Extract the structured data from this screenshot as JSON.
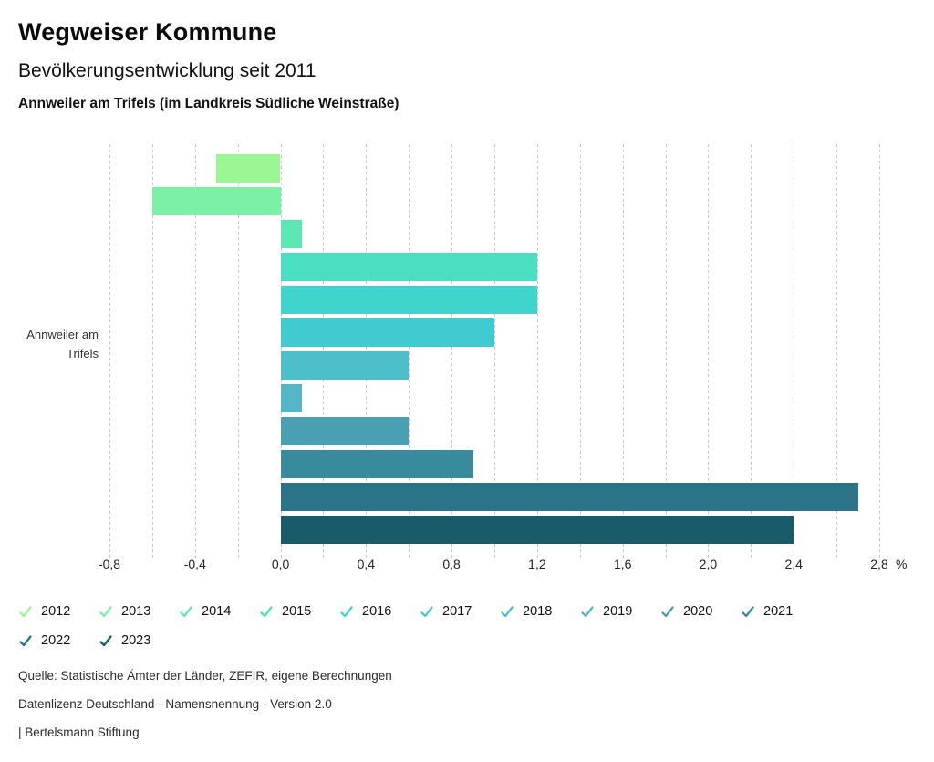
{
  "header": {
    "title": "Wegweiser Kommune",
    "subtitle": "Bevölkerungsentwicklung seit 2011",
    "region": "Annweiler am Trifels (im Landkreis Südliche Weinstraße)"
  },
  "chart_data": {
    "type": "bar",
    "orientation": "horizontal",
    "title": "Bevölkerungsentwicklung seit 2011",
    "unit": "%",
    "category_label_lines": [
      "Annweiler am",
      "Trifels"
    ],
    "series": [
      {
        "name": "2012",
        "value": -0.3,
        "color": "#9af794"
      },
      {
        "name": "2013",
        "value": -0.6,
        "color": "#7cf0a5"
      },
      {
        "name": "2014",
        "value": 0.1,
        "color": "#5ce8b5"
      },
      {
        "name": "2015",
        "value": 1.2,
        "color": "#49dfc0"
      },
      {
        "name": "2016",
        "value": 1.2,
        "color": "#3fd5cc"
      },
      {
        "name": "2017",
        "value": 1.0,
        "color": "#41cbd0"
      },
      {
        "name": "2018",
        "value": 0.6,
        "color": "#4dbfca"
      },
      {
        "name": "2019",
        "value": 0.1,
        "color": "#57b5c8"
      },
      {
        "name": "2020",
        "value": 0.6,
        "color": "#4a9fb3"
      },
      {
        "name": "2021",
        "value": 0.9,
        "color": "#3a8a9e"
      },
      {
        "name": "2022",
        "value": 2.7,
        "color": "#2b7487"
      },
      {
        "name": "2023",
        "value": 2.4,
        "color": "#1a5b6a"
      }
    ],
    "xlim": [
      -0.8,
      2.8
    ],
    "grid_step": 0.2,
    "grid": true,
    "gridline_color": "#c7c7c7",
    "x_major_values": [
      -0.8,
      -0.4,
      0.0,
      0.4,
      0.8,
      1.2,
      1.6,
      2.0,
      2.4,
      2.8
    ],
    "x_major_ticks": [
      "-0,8",
      "-0,4",
      "0,0",
      "0,4",
      "0,8",
      "1,2",
      "1,6",
      "2,0",
      "2,4",
      "2,8"
    ],
    "legend_position": "bottom"
  },
  "legend": {
    "items": [
      {
        "label": "2012",
        "color": "#9af794"
      },
      {
        "label": "2013",
        "color": "#7cf0a5"
      },
      {
        "label": "2014",
        "color": "#5ce8b5"
      },
      {
        "label": "2015",
        "color": "#49dfc0"
      },
      {
        "label": "2016",
        "color": "#3fd5cc"
      },
      {
        "label": "2017",
        "color": "#41cbd0"
      },
      {
        "label": "2018",
        "color": "#4dbfca"
      },
      {
        "label": "2019",
        "color": "#57b5c8"
      },
      {
        "label": "2020",
        "color": "#4a9fb3"
      },
      {
        "label": "2021",
        "color": "#3a8a9e"
      },
      {
        "label": "2022",
        "color": "#2b7487"
      },
      {
        "label": "2023",
        "color": "#1a5b6a"
      }
    ]
  },
  "footer": {
    "lines": [
      "Quelle: Statistische Ämter der Länder, ZEFIR, eigene Berechnungen",
      "Datenlizenz Deutschland - Namensnennung - Version 2.0",
      "| Bertelsmann Stiftung"
    ]
  }
}
